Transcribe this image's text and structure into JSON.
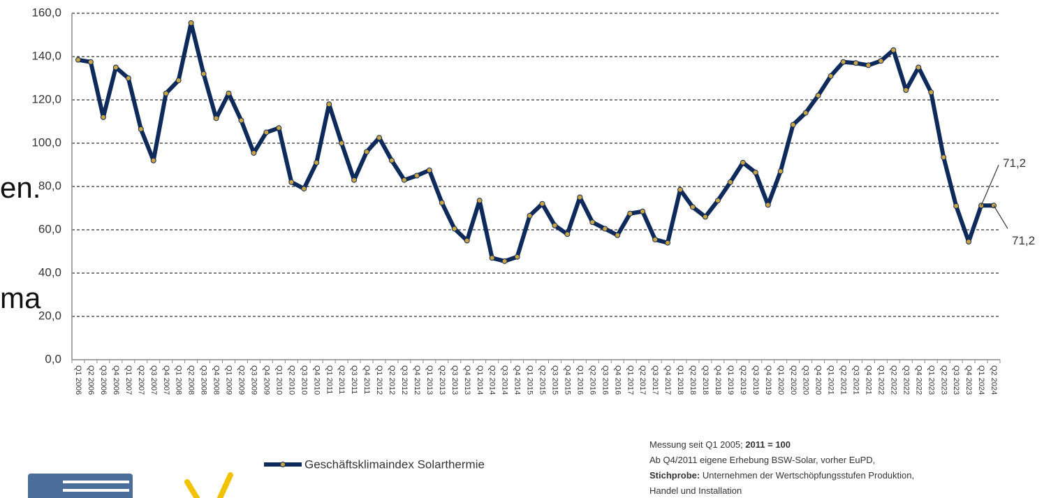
{
  "chart_data": {
    "type": "line",
    "categories": [
      "Q1 2006",
      "Q2 2006",
      "Q3 2006",
      "Q4 2006",
      "Q1 2007",
      "Q2 2007",
      "Q3 2007",
      "Q4 2007",
      "Q1 2008",
      "Q2 2008",
      "Q3 2008",
      "Q4 2008",
      "Q1 2009",
      "Q2 2009",
      "Q3 2009",
      "Q4 2009",
      "Q1 2010",
      "Q2 2010",
      "Q3 2010",
      "Q4 2010",
      "Q1 2011",
      "Q2 2011",
      "Q3 2011",
      "Q4 2011",
      "Q1 2012",
      "Q2 2012",
      "Q3 2012",
      "Q4 2012",
      "Q1 2013",
      "Q2 2013",
      "Q3 2013",
      "Q4 2013",
      "Q1 2014",
      "Q2 2014",
      "Q3 2014",
      "Q4 2014",
      "Q1 2015",
      "Q2 2015",
      "Q3 2015",
      "Q4 2015",
      "Q1 2016",
      "Q2 2016",
      "Q3 2016",
      "Q4 2016",
      "Q1 2017",
      "Q2 2017",
      "Q3 2017",
      "Q4 2017",
      "Q1 2018",
      "Q2 2018",
      "Q3 2018",
      "Q4 2018",
      "Q1 2019",
      "Q2 2019",
      "Q3 2019",
      "Q4 2019",
      "Q1 2020",
      "Q2 2020",
      "Q3 2020",
      "Q4 2020",
      "Q1 2021",
      "Q2 2021",
      "Q3 2021",
      "Q4 2021",
      "Q1 2022",
      "Q2 2022",
      "Q3 2022",
      "Q4 2022",
      "Q1 2023",
      "Q2 2023",
      "Q3 2023",
      "Q4 2023",
      "Q1 2024",
      "Q2 2024"
    ],
    "series": [
      {
        "name": "Geschäftsklimaindex Solarthermie",
        "color": "#0d2a5a",
        "marker_color": "#c9a444",
        "values": [
          138.5,
          137.5,
          112,
          135,
          130,
          106.5,
          92,
          123,
          129,
          155.5,
          132,
          111.5,
          123,
          110.5,
          95.5,
          105,
          107,
          82,
          79,
          91,
          118,
          100,
          83,
          96,
          102.5,
          92,
          83,
          85,
          87.5,
          72.5,
          60.5,
          55,
          73.5,
          47,
          45.5,
          47.5,
          66.5,
          72,
          62,
          58,
          75,
          63.5,
          60.5,
          57.5,
          67.5,
          68.5,
          55.5,
          54,
          78.5,
          70.5,
          66,
          73.5,
          82,
          91,
          86.5,
          71.5,
          87,
          108.5,
          114,
          122,
          131,
          137.5,
          137,
          136,
          138,
          143,
          124.5,
          135,
          123.5,
          93.5,
          71,
          54.5,
          71.2,
          71.2
        ],
        "value_labels": [
          null,
          null,
          null,
          null,
          null,
          null,
          null,
          null,
          null,
          null,
          null,
          null,
          null,
          null,
          null,
          null,
          null,
          null,
          null,
          null,
          null,
          null,
          null,
          null,
          null,
          null,
          null,
          null,
          null,
          null,
          null,
          null,
          null,
          null,
          null,
          null,
          null,
          null,
          null,
          null,
          null,
          null,
          null,
          null,
          null,
          null,
          null,
          null,
          null,
          null,
          null,
          null,
          null,
          null,
          null,
          null,
          null,
          null,
          null,
          null,
          null,
          null,
          null,
          null,
          null,
          null,
          null,
          null,
          null,
          null,
          null,
          null,
          "71,2",
          "71,2"
        ]
      }
    ],
    "ylim": [
      0,
      160
    ],
    "yticks": [
      {
        "value": 0,
        "label": "0,0"
      },
      {
        "value": 20,
        "label": "20,0"
      },
      {
        "value": 40,
        "label": "40,0"
      },
      {
        "value": 60,
        "label": "60,0"
      },
      {
        "value": 80,
        "label": "80,0"
      },
      {
        "value": 100,
        "label": "100,0"
      },
      {
        "value": 120,
        "label": "120,0"
      },
      {
        "value": 140,
        "label": "140,0"
      },
      {
        "value": 160,
        "label": "160,0"
      }
    ],
    "grid": true
  },
  "notes": [
    [
      {
        "text": "Messung seit Q1 2005; ",
        "bold": false
      },
      {
        "text": "2011 = 100",
        "bold": true
      }
    ],
    [
      {
        "text": "Ab Q4/2011 eigene Erhebung BSW-Solar, vorher EuPD,",
        "bold": false
      }
    ],
    [
      {
        "text": "Stichprobe:",
        "bold": true
      },
      {
        "text": " Unternehmen der Wertschöpfungsstufen Produktion,",
        "bold": false
      }
    ],
    [
      {
        "text": "Handel und Installation",
        "bold": false
      }
    ]
  ],
  "overlay_texts": [
    "en.",
    "ma"
  ]
}
